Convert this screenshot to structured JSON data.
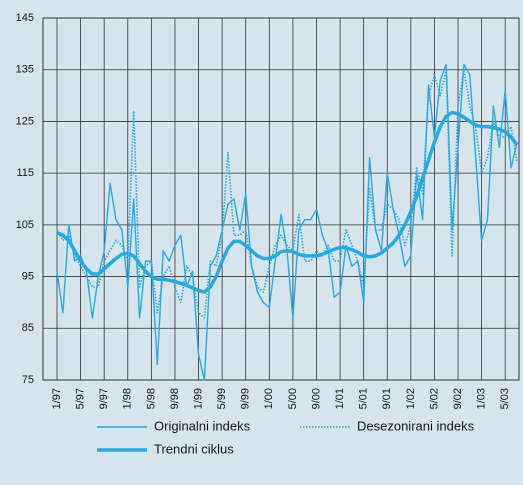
{
  "chart_data": {
    "type": "line",
    "categories": [
      "1/97",
      null,
      null,
      null,
      "5/97",
      null,
      null,
      null,
      "9/97",
      null,
      null,
      null,
      "1/98",
      null,
      null,
      null,
      "5/98",
      null,
      null,
      null,
      "9/98",
      null,
      null,
      null,
      "1/99",
      null,
      null,
      null,
      "5/99",
      null,
      null,
      null,
      "9/99",
      null,
      null,
      null,
      "1/00",
      null,
      null,
      null,
      "5/00",
      null,
      null,
      null,
      "9/00",
      null,
      null,
      null,
      "1/01",
      null,
      null,
      null,
      "5/01",
      null,
      null,
      null,
      "9/01",
      null,
      null,
      null,
      "1/02",
      null,
      null,
      null,
      "5/02",
      null,
      null,
      null,
      "9/02",
      null,
      null,
      null,
      "1/03",
      null,
      null,
      null,
      "5/03",
      null,
      null
    ],
    "series": [
      {
        "name": "Originalni indeks",
        "color": "#29a9e0",
        "style": "solid",
        "width": 1.4,
        "values": [
          96,
          88,
          105,
          98,
          99,
          96,
          87,
          95,
          100,
          113,
          106,
          104,
          93,
          110,
          87,
          98,
          98,
          78,
          100,
          98,
          101,
          103,
          93,
          96,
          80,
          75,
          97,
          99,
          104,
          109,
          110,
          104,
          111,
          97,
          92,
          90,
          89,
          98,
          107,
          100,
          87,
          104,
          106,
          106,
          108,
          103,
          100,
          91,
          92,
          101,
          97,
          98,
          90,
          118,
          104,
          100,
          115,
          108,
          103,
          97,
          99,
          115,
          106,
          132,
          122,
          133,
          136,
          104,
          120,
          136,
          134,
          118,
          102,
          106,
          128,
          120,
          131,
          116,
          121
        ]
      },
      {
        "name": "Desezonirani indeks",
        "color": "#29a9e0",
        "style": "dotted",
        "width": 1.6,
        "values": [
          104,
          102,
          103,
          99,
          97,
          95,
          93,
          93,
          98,
          100,
          102,
          101,
          98,
          127,
          93,
          97,
          98,
          88,
          95,
          97,
          93,
          90,
          97,
          95,
          88,
          87,
          98,
          97,
          103,
          119,
          103,
          103,
          104,
          97,
          93,
          92,
          97,
          101,
          103,
          101,
          100,
          107,
          98,
          98,
          100,
          99,
          101,
          98,
          98,
          104,
          101,
          98,
          93,
          112,
          104,
          104,
          109,
          108,
          106,
          101,
          105,
          116,
          111,
          130,
          134,
          130,
          135,
          99,
          128,
          135,
          128,
          124,
          115,
          118,
          125,
          122,
          122,
          124,
          117
        ]
      },
      {
        "name": "Trendni ciklus",
        "color": "#29a9e0",
        "style": "solid",
        "width": 3.5,
        "values": [
          103.5,
          103,
          102,
          100,
          98,
          96.5,
          95.5,
          95.5,
          96.5,
          97.5,
          98.5,
          99.3,
          99.5,
          99,
          97.5,
          96,
          95,
          94.5,
          94.5,
          94.3,
          94,
          93.7,
          93.3,
          92.8,
          92.3,
          92,
          93,
          95,
          98,
          100.5,
          101.8,
          101.8,
          101,
          100,
          99,
          98.5,
          98.5,
          99,
          99.8,
          100,
          99.8,
          99.3,
          99,
          99,
          99,
          99.3,
          99.8,
          100.3,
          100.6,
          100.6,
          100.2,
          99.7,
          99,
          98.8,
          99,
          99.6,
          100.5,
          101.5,
          103,
          105,
          107.5,
          110.5,
          114,
          117.5,
          121,
          124,
          126,
          126.7,
          126.5,
          125.8,
          125,
          124.3,
          124,
          124,
          123.8,
          123.5,
          123,
          122,
          120.5
        ]
      }
    ],
    "ylim": [
      75,
      145
    ],
    "yticks": [
      75,
      85,
      95,
      105,
      115,
      125,
      135,
      145
    ],
    "grid": true,
    "legend": "bottom"
  }
}
